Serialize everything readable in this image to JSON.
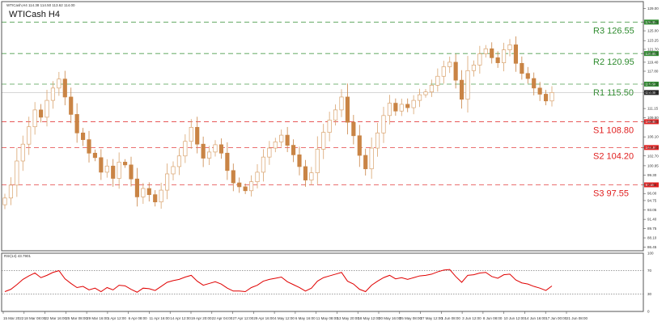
{
  "header": {
    "symbol_line": "WTICash,H4  114.38 114.50 113.62 114.00",
    "title": "WTICash H4"
  },
  "colors": {
    "up": "#d9a36e",
    "down": "#c98445",
    "resistance": "#2e8b2e",
    "support": "#e02020",
    "rsi": "#e00000",
    "frame": "#555555"
  },
  "chart_data": [
    {
      "type": "candlestick",
      "title": "WTICash H4",
      "ylim": [
        85.8,
        130.2
      ],
      "y_ticks": [
        "129.00",
        "126.55",
        "125.00",
        "123.25",
        "121.70",
        "120.95",
        "119.40",
        "117.80",
        "115.50",
        "114.00",
        "111.15",
        "109.50",
        "108.80",
        "106.10",
        "104.20",
        "102.70",
        "100.95",
        "99.30",
        "97.55",
        "96.00",
        "94.75",
        "93.05",
        "91.40",
        "89.75",
        "88.10",
        "86.45"
      ],
      "x_ticks": [
        "15 Mar 2022",
        "18 Mar 08:00",
        "22 Mar 16:00",
        "25 Mar 08:00",
        "29 Mar 16:00",
        "1 Apr 12:00",
        "6 Apr 08:00",
        "11 Apr 16:00",
        "14 Apr 12:00",
        "19 Apr 20:00",
        "22 Apr 04:00",
        "27 Apr 12:00",
        "29 Apr 16:00",
        "4 May 12:00",
        "6 May 16:00",
        "11 May 08:00",
        "13 May 20:00",
        "18 May 12:00",
        "20 May 16:00",
        "25 May 08:00",
        "27 May 12:00",
        "1 Jun 08:00",
        "3 Jun 12:00",
        "8 Jun 08:00",
        "10 Jun 12:00",
        "14 Jun 16:00",
        "17 Jun 00:00",
        "21 Jun 08:00"
      ],
      "current_price": "114.00",
      "close_series": [
        95.2,
        97.5,
        101.8,
        104.8,
        107.9,
        110.9,
        109.6,
        112.6,
        114.8,
        116.4,
        113.2,
        110.1,
        106.8,
        105.6,
        103.2,
        102.4,
        99.8,
        100.9,
        98.7,
        101.6,
        101.1,
        98.6,
        95.4,
        96.9,
        95.8,
        94.5,
        96.6,
        99.5,
        100.8,
        102.7,
        105.3,
        107.8,
        104.8,
        102.3,
        103.4,
        104.7,
        103.2,
        100.1,
        97.9,
        97.2,
        96.5,
        98.1,
        99.8,
        102.5,
        104.1,
        105.2,
        106.4,
        104.6,
        102.9,
        100.8,
        98.4,
        99.7,
        103.9,
        106.9,
        109.1,
        110.9,
        113.2,
        108.7,
        106.3,
        102.8,
        100.4,
        104.1,
        106.8,
        109.9,
        112.1,
        110.7,
        111.9,
        111.3,
        112.6,
        113.6,
        114.1,
        115.3,
        116.9,
        118.6,
        119.4,
        116.2,
        112.8,
        117.9,
        118.9,
        120.9,
        121.8,
        120.2,
        119.3,
        121.6,
        122.5,
        119.2,
        117.4,
        116.5,
        114.8,
        113.7,
        112.5,
        114.0
      ],
      "levels": [
        {
          "name": "R3",
          "label": "R3 126.55",
          "value": 126.55,
          "kind": "resistance"
        },
        {
          "name": "R2",
          "label": "R2 120.95",
          "value": 120.95,
          "kind": "resistance"
        },
        {
          "name": "R1",
          "label": "R1 115.50",
          "value": 115.5,
          "kind": "resistance"
        },
        {
          "name": "S1",
          "label": "S1 108.80",
          "value": 108.8,
          "kind": "support"
        },
        {
          "name": "S2",
          "label": "S2 104.20",
          "value": 104.2,
          "kind": "support"
        },
        {
          "name": "S3",
          "label": "S3 97.55",
          "value": 97.55,
          "kind": "support"
        }
      ]
    },
    {
      "type": "line",
      "title": "RSI(14) 43.7901",
      "ylim": [
        0,
        100
      ],
      "y_ticks": [
        "100",
        "70",
        "30",
        "0"
      ],
      "levels": [
        70,
        30
      ],
      "values": [
        34,
        38,
        46,
        55,
        61,
        66,
        58,
        62,
        67,
        70,
        56,
        48,
        41,
        43,
        37,
        40,
        34,
        41,
        37,
        45,
        44,
        38,
        33,
        40,
        39,
        36,
        43,
        50,
        53,
        55,
        59,
        62,
        52,
        45,
        48,
        51,
        47,
        40,
        35,
        35,
        34,
        41,
        45,
        52,
        55,
        57,
        59,
        51,
        46,
        41,
        35,
        40,
        52,
        58,
        61,
        64,
        67,
        52,
        47,
        38,
        34,
        45,
        52,
        58,
        62,
        56,
        58,
        55,
        58,
        61,
        62,
        64,
        68,
        71,
        72,
        60,
        50,
        62,
        63,
        66,
        67,
        60,
        57,
        63,
        64,
        54,
        49,
        47,
        43,
        40,
        36,
        43.79
      ]
    }
  ]
}
